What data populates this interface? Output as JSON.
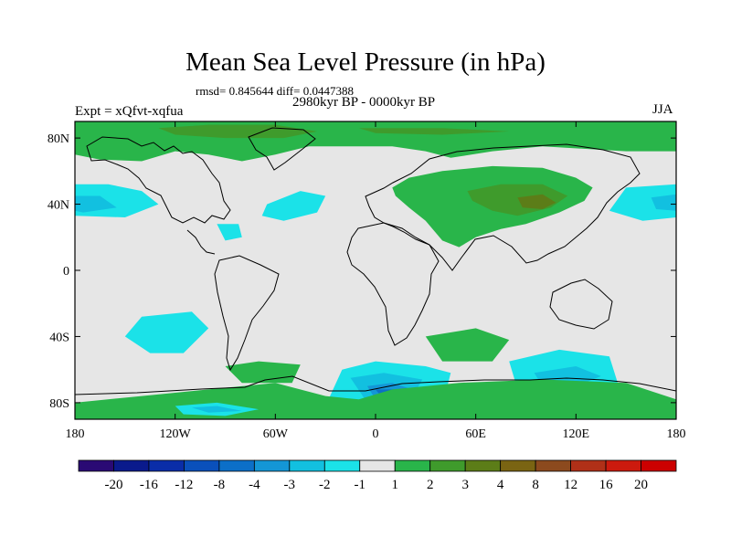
{
  "chart_data": {
    "type": "heatmap",
    "title": "Mean Sea Level Pressure (in hPa)",
    "stats_label": "rmsd= 0.845644 diff= 0.0447388",
    "subtitle": "2980kyr BP - 0000kyr BP",
    "left_label": "Expt = xQfvt-xqfua",
    "right_label": "JJA",
    "x_ticks": [
      {
        "lon": -180,
        "label": "180"
      },
      {
        "lon": -120,
        "label": "120W"
      },
      {
        "lon": -60,
        "label": "60W"
      },
      {
        "lon": 0,
        "label": "0"
      },
      {
        "lon": 60,
        "label": "60E"
      },
      {
        "lon": 120,
        "label": "120E"
      },
      {
        "lon": 180,
        "label": "180"
      }
    ],
    "y_ticks": [
      {
        "lat": 80,
        "label": "80N"
      },
      {
        "lat": 40,
        "label": "40N"
      },
      {
        "lat": 0,
        "label": "0"
      },
      {
        "lat": -40,
        "label": "40S"
      },
      {
        "lat": -80,
        "label": "80S"
      }
    ],
    "xlim": [
      -180,
      180
    ],
    "ylim": [
      -90,
      90
    ],
    "colorbar": {
      "colors": [
        "#2a0a74",
        "#0a1a8c",
        "#0a2da8",
        "#0a50bb",
        "#0c6fc8",
        "#1496d6",
        "#12c0e0",
        "#1be2e8",
        "#e6e6e6",
        "#29b54a",
        "#3f9b2c",
        "#5c7d18",
        "#7a6412",
        "#8c4a1e",
        "#b03018",
        "#cc1a0e",
        "#cc0000"
      ],
      "labels": [
        "-20",
        "-16",
        "-12",
        "-8",
        "-4",
        "-3",
        "-2",
        "-1",
        "1",
        "2",
        "3",
        "4",
        "8",
        "12",
        "16",
        "20"
      ]
    },
    "regions": [
      {
        "name": "arctic-positive",
        "level": 2,
        "color": "#29b54a",
        "points": [
          [
            -180,
            90
          ],
          [
            180,
            90
          ],
          [
            180,
            72
          ],
          [
            150,
            72
          ],
          [
            100,
            75
          ],
          [
            70,
            72
          ],
          [
            45,
            68
          ],
          [
            30,
            72
          ],
          [
            10,
            75
          ],
          [
            -15,
            75
          ],
          [
            -40,
            75
          ],
          [
            -60,
            70
          ],
          [
            -80,
            66
          ],
          [
            -100,
            70
          ],
          [
            -120,
            72
          ],
          [
            -140,
            66
          ],
          [
            -165,
            67
          ],
          [
            -180,
            70
          ]
        ]
      },
      {
        "name": "arctic-positive-3a",
        "level": 3,
        "color": "#3f9b2c",
        "points": [
          [
            -130,
            86
          ],
          [
            -100,
            88
          ],
          [
            -60,
            88
          ],
          [
            -35,
            84
          ],
          [
            -55,
            80
          ],
          [
            -90,
            80
          ],
          [
            -120,
            82
          ]
        ]
      },
      {
        "name": "arctic-positive-3b",
        "level": 3,
        "color": "#3f9b2c",
        "points": [
          [
            -10,
            86
          ],
          [
            40,
            86
          ],
          [
            80,
            84
          ],
          [
            40,
            82
          ],
          [
            0,
            83
          ]
        ]
      },
      {
        "name": "eurasia-positive",
        "level": 2,
        "color": "#29b54a",
        "points": [
          [
            10,
            50
          ],
          [
            20,
            56
          ],
          [
            40,
            60
          ],
          [
            70,
            63
          ],
          [
            100,
            62
          ],
          [
            120,
            56
          ],
          [
            130,
            50
          ],
          [
            125,
            42
          ],
          [
            110,
            35
          ],
          [
            90,
            28
          ],
          [
            75,
            25
          ],
          [
            60,
            20
          ],
          [
            50,
            14
          ],
          [
            40,
            18
          ],
          [
            30,
            30
          ],
          [
            20,
            38
          ],
          [
            12,
            45
          ]
        ]
      },
      {
        "name": "eurasia-positive-3",
        "level": 3,
        "color": "#3f9b2c",
        "points": [
          [
            55,
            48
          ],
          [
            75,
            52
          ],
          [
            100,
            52
          ],
          [
            115,
            45
          ],
          [
            105,
            38
          ],
          [
            85,
            33
          ],
          [
            70,
            36
          ],
          [
            58,
            42
          ]
        ]
      },
      {
        "name": "eurasia-positive-4",
        "level": 4,
        "color": "#5c7d18",
        "points": [
          [
            85,
            44
          ],
          [
            100,
            46
          ],
          [
            108,
            41
          ],
          [
            100,
            37
          ],
          [
            88,
            38
          ]
        ]
      },
      {
        "name": "pacific-north-east-negative",
        "level": -1,
        "color": "#1be2e8",
        "points": [
          [
            -180,
            52
          ],
          [
            -160,
            52
          ],
          [
            -140,
            48
          ],
          [
            -130,
            40
          ],
          [
            -150,
            32
          ],
          [
            -180,
            33
          ]
        ]
      },
      {
        "name": "pacific-north-east-negative-2",
        "level": -2,
        "color": "#12c0e0",
        "points": [
          [
            -180,
            45
          ],
          [
            -165,
            45
          ],
          [
            -155,
            38
          ],
          [
            -175,
            35
          ],
          [
            -180,
            36
          ]
        ]
      },
      {
        "name": "pacific-north-west-negative",
        "level": -1,
        "color": "#1be2e8",
        "points": [
          [
            150,
            50
          ],
          [
            180,
            52
          ],
          [
            180,
            32
          ],
          [
            160,
            30
          ],
          [
            140,
            36
          ]
        ]
      },
      {
        "name": "pacific-north-west-negative-2",
        "level": -2,
        "color": "#12c0e0",
        "points": [
          [
            165,
            44
          ],
          [
            180,
            46
          ],
          [
            180,
            36
          ],
          [
            168,
            37
          ]
        ]
      },
      {
        "name": "atlantic-negative",
        "level": -1,
        "color": "#1be2e8",
        "points": [
          [
            -65,
            40
          ],
          [
            -45,
            48
          ],
          [
            -30,
            45
          ],
          [
            -35,
            35
          ],
          [
            -55,
            30
          ],
          [
            -68,
            33
          ]
        ]
      },
      {
        "name": "gulf-negative",
        "level": -1,
        "color": "#1be2e8",
        "points": [
          [
            -95,
            28
          ],
          [
            -82,
            28
          ],
          [
            -80,
            20
          ],
          [
            -90,
            18
          ]
        ]
      },
      {
        "name": "south-pacific-negative",
        "level": -1,
        "color": "#1be2e8",
        "points": [
          [
            -140,
            -28
          ],
          [
            -110,
            -25
          ],
          [
            -100,
            -35
          ],
          [
            -115,
            -50
          ],
          [
            -135,
            -50
          ],
          [
            -150,
            -40
          ]
        ]
      },
      {
        "name": "south-america-positive",
        "level": 2,
        "color": "#29b54a",
        "points": [
          [
            -90,
            -58
          ],
          [
            -70,
            -55
          ],
          [
            -45,
            -57
          ],
          [
            -50,
            -68
          ],
          [
            -80,
            -68
          ]
        ]
      },
      {
        "name": "south-atlantic-negative",
        "level": -1,
        "color": "#1be2e8",
        "points": [
          [
            -20,
            -60
          ],
          [
            0,
            -55
          ],
          [
            30,
            -58
          ],
          [
            45,
            -62
          ],
          [
            40,
            -82
          ],
          [
            0,
            -85
          ],
          [
            -30,
            -82
          ]
        ]
      },
      {
        "name": "south-atlantic-negative-2",
        "level": -2,
        "color": "#12c0e0",
        "points": [
          [
            -15,
            -65
          ],
          [
            5,
            -62
          ],
          [
            28,
            -66
          ],
          [
            20,
            -80
          ],
          [
            -5,
            -80
          ]
        ]
      },
      {
        "name": "south-atlantic-negative-3",
        "level": -3,
        "color": "#1496d6",
        "points": [
          [
            -5,
            -70
          ],
          [
            10,
            -68
          ],
          [
            22,
            -72
          ],
          [
            15,
            -80
          ],
          [
            0,
            -78
          ]
        ]
      },
      {
        "name": "south-atlantic-negative-4",
        "level": -4,
        "color": "#0c6fc8",
        "points": [
          [
            0,
            -72
          ],
          [
            14,
            -72
          ],
          [
            16,
            -76
          ],
          [
            4,
            -77
          ]
        ]
      },
      {
        "name": "south-indian-positive",
        "level": 2,
        "color": "#29b54a",
        "points": [
          [
            30,
            -40
          ],
          [
            60,
            -35
          ],
          [
            80,
            -42
          ],
          [
            70,
            -55
          ],
          [
            40,
            -55
          ]
        ]
      },
      {
        "name": "south-indian-negative",
        "level": -1,
        "color": "#1be2e8",
        "points": [
          [
            80,
            -55
          ],
          [
            110,
            -48
          ],
          [
            140,
            -52
          ],
          [
            145,
            -68
          ],
          [
            110,
            -75
          ],
          [
            85,
            -72
          ]
        ]
      },
      {
        "name": "south-indian-negative-2",
        "level": -2,
        "color": "#12c0e0",
        "points": [
          [
            95,
            -62
          ],
          [
            120,
            -58
          ],
          [
            135,
            -64
          ],
          [
            120,
            -70
          ],
          [
            100,
            -70
          ]
        ]
      },
      {
        "name": "antarctic-coast-positive",
        "level": 2,
        "color": "#29b54a",
        "points": [
          [
            -180,
            -80
          ],
          [
            -140,
            -76
          ],
          [
            -100,
            -72
          ],
          [
            -60,
            -68
          ],
          [
            -30,
            -76
          ],
          [
            -10,
            -78
          ],
          [
            10,
            -72
          ],
          [
            50,
            -68
          ],
          [
            100,
            -66
          ],
          [
            150,
            -68
          ],
          [
            180,
            -78
          ],
          [
            180,
            -90
          ],
          [
            -180,
            -90
          ]
        ]
      },
      {
        "name": "antarctic-negative",
        "level": -1,
        "color": "#1be2e8",
        "points": [
          [
            -120,
            -82
          ],
          [
            -95,
            -80
          ],
          [
            -70,
            -84
          ],
          [
            -90,
            -88
          ],
          [
            -115,
            -87
          ]
        ]
      },
      {
        "name": "antarctic-negative-2",
        "level": -2,
        "color": "#12c0e0",
        "points": [
          [
            -110,
            -83
          ],
          [
            -95,
            -82
          ],
          [
            -80,
            -85
          ],
          [
            -100,
            -86
          ]
        ]
      }
    ]
  }
}
